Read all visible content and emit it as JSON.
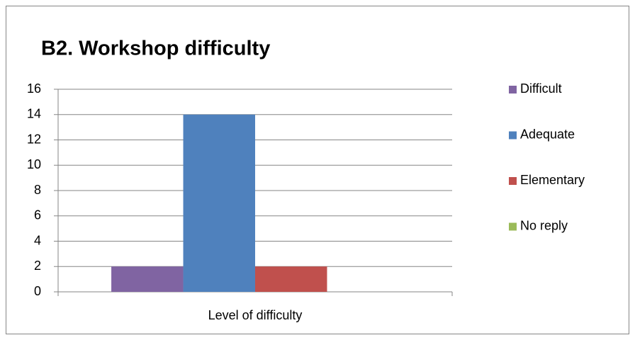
{
  "chart_data": {
    "type": "bar",
    "title": "B2. Workshop difficulty",
    "categories": [
      "Level of difficulty"
    ],
    "series": [
      {
        "name": "Difficult",
        "color": "#8064a2",
        "values": [
          2
        ]
      },
      {
        "name": "Adequate",
        "color": "#4f81bd",
        "values": [
          14
        ]
      },
      {
        "name": "Elementary",
        "color": "#c0504d",
        "values": [
          2
        ]
      },
      {
        "name": "No reply",
        "color": "#9bbb59",
        "values": [
          0
        ]
      }
    ],
    "ylim": [
      0,
      16
    ],
    "yticks": [
      0,
      2,
      4,
      6,
      8,
      10,
      12,
      14,
      16
    ],
    "grid": true,
    "legend": "right"
  }
}
